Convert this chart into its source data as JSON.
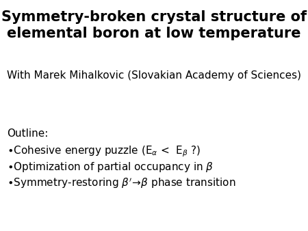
{
  "title_line1": "Symmetry-broken crystal structure of",
  "title_line2": "elemental boron at low temperature",
  "subtitle": "With Marek Mihalkovic (Slovakian Academy of Sciences)",
  "outline_label": "Outline:",
  "bg_color": "#ffffff",
  "title_color": "#000000",
  "text_color": "#000000",
  "title_fontsize": 15.0,
  "subtitle_fontsize": 11.0,
  "body_fontsize": 11.0
}
